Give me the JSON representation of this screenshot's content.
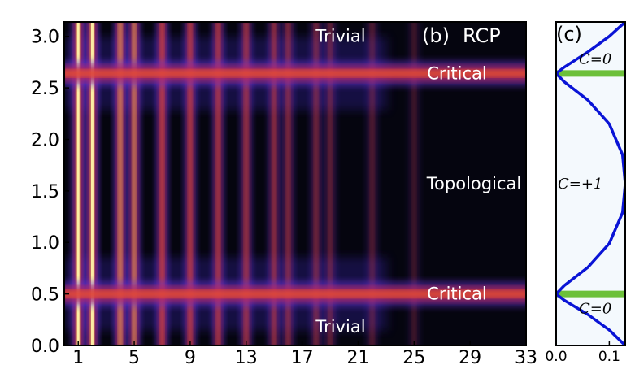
{
  "chart_data": [
    {
      "type": "heatmap",
      "panel_label": "(b)",
      "panel_title": "RCP",
      "x_ticks": [
        "1",
        "5",
        "9",
        "13",
        "17",
        "21",
        "25",
        "29",
        "33"
      ],
      "y_ticks": [
        "0.0",
        "0.5",
        "1.0",
        "1.5",
        "2.0",
        "2.5",
        "3.0"
      ],
      "xlim": [
        0,
        33
      ],
      "ylim": [
        0,
        3.14
      ],
      "critical_lines_y": [
        0.5,
        2.64
      ],
      "bright_columns_x": [
        1,
        2,
        4,
        5,
        7,
        9,
        11,
        13,
        15,
        16,
        18,
        19,
        22,
        25
      ],
      "colormap": [
        "#05050f",
        "#2b1a80",
        "#6a34d8",
        "#c2284f",
        "#f0552a",
        "#fbb44a",
        "#fff3a8"
      ],
      "regions": [
        {
          "label": "Trivial",
          "y": 3.0
        },
        {
          "label": "Critical",
          "y": 2.64
        },
        {
          "label": "Topological",
          "y": 1.57
        },
        {
          "label": "Critical",
          "y": 0.5
        },
        {
          "label": "Trivial",
          "y": 0.18
        }
      ]
    },
    {
      "type": "line",
      "panel_label": "(c)",
      "x_ticks": [
        "0.0",
        "0.1"
      ],
      "xlim": [
        0,
        0.13
      ],
      "ylim": [
        0,
        3.14
      ],
      "series": [
        {
          "color": "#0a14d6",
          "x": [
            0.13,
            0.1,
            0.06,
            0.015,
            0.0,
            0.015,
            0.06,
            0.1,
            0.125,
            0.13,
            0.125,
            0.1,
            0.06,
            0.015,
            0.0,
            0.015,
            0.06,
            0.1,
            0.13
          ],
          "y": [
            3.14,
            3.0,
            2.85,
            2.7,
            2.64,
            2.56,
            2.38,
            2.15,
            1.85,
            1.57,
            1.29,
            0.99,
            0.76,
            0.58,
            0.5,
            0.44,
            0.3,
            0.15,
            0.0
          ]
        }
      ],
      "highlight_bars": [
        {
          "y": 2.64,
          "color": "#6cc03a"
        },
        {
          "y": 0.5,
          "color": "#6cc03a"
        }
      ],
      "annotations": [
        {
          "text": "C=0",
          "y": 2.78
        },
        {
          "text": "C=+1",
          "y": 1.57
        },
        {
          "text": "C=0",
          "y": 0.36
        }
      ]
    }
  ]
}
